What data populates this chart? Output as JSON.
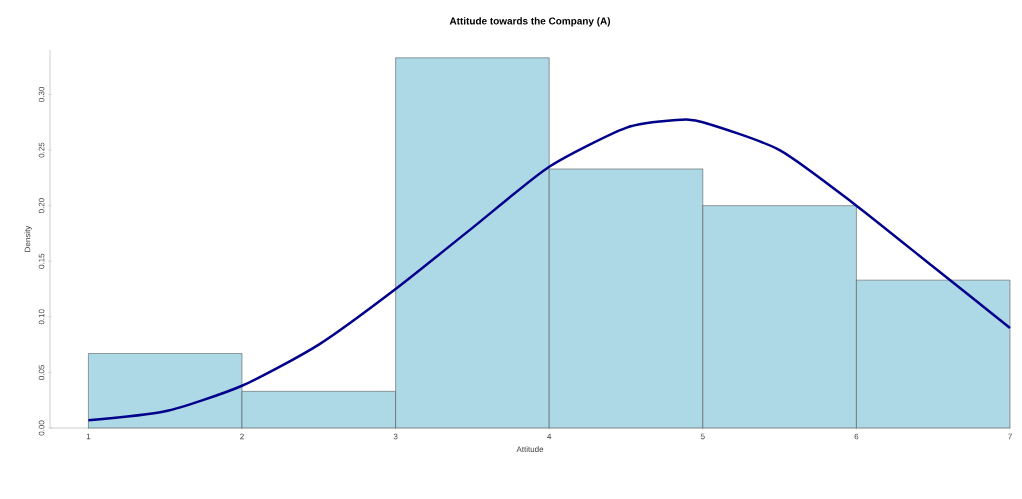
{
  "chart_data": {
    "type": "histogram",
    "title": "Attitude towards the Company (A)",
    "xlabel": "Attitude",
    "ylabel": "Density",
    "bins": [
      1,
      2,
      3,
      4,
      5,
      6,
      7
    ],
    "values": [
      0.067,
      0.033,
      0.333,
      0.233,
      0.2,
      0.133
    ],
    "color": "#add8e6",
    "xlim": [
      0.75,
      7
    ],
    "ylim": [
      0,
      0.34
    ],
    "xticks": [
      1,
      2,
      3,
      4,
      5,
      6,
      7
    ],
    "yticks": [
      {
        "value": 0,
        "label": "0.00"
      },
      {
        "value": 0.05,
        "label": "0.05"
      },
      {
        "value": 0.1,
        "label": "0.10"
      },
      {
        "value": 0.15,
        "label": "0.15"
      },
      {
        "value": 0.2,
        "label": "0.20"
      },
      {
        "value": 0.25,
        "label": "0.25"
      },
      {
        "value": 0.3,
        "label": "0.30"
      }
    ],
    "grid": false,
    "series": [
      {
        "type": "line",
        "color": "#00008b",
        "x": [
          1,
          1.5,
          2,
          2.5,
          3,
          3.5,
          4,
          4.5,
          4.83,
          5,
          5.5,
          6,
          6.5,
          7
        ],
        "values": [
          0.007,
          0.015,
          0.038,
          0.075,
          0.125,
          0.18,
          0.235,
          0.27,
          0.277,
          0.275,
          0.25,
          0.2,
          0.145,
          0.09
        ]
      }
    ]
  }
}
